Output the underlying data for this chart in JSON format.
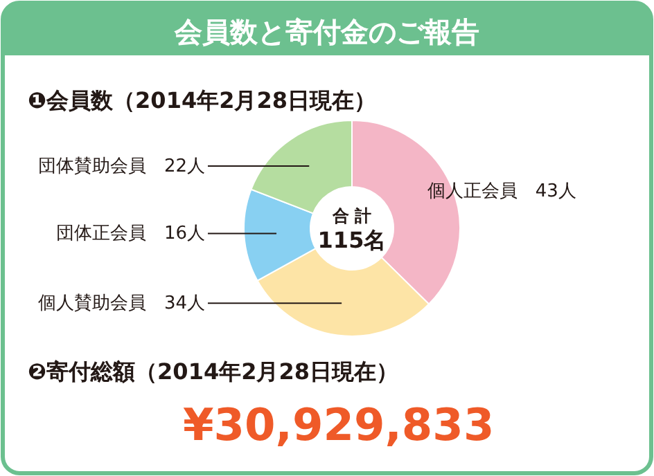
{
  "chart_data": {
    "type": "donut",
    "title": "会員数と寄付金のご報告",
    "subtitle": "❶会員数（2014年2月28日現在）",
    "categories": [
      "個人正会員",
      "個人賛助会員",
      "団体正会員",
      "団体賛助会員"
    ],
    "values": [
      43,
      34,
      16,
      22
    ],
    "value_labels": [
      "43人",
      "34人",
      "16人",
      "22人"
    ],
    "colors": [
      "#f4b6c6",
      "#fde4a6",
      "#88d0f2",
      "#b5dda0"
    ],
    "annotations": [
      "合 計",
      "115名",
      "❷寄付総額（2014年2月28日現在）",
      "¥30,929,833"
    ]
  }
}
